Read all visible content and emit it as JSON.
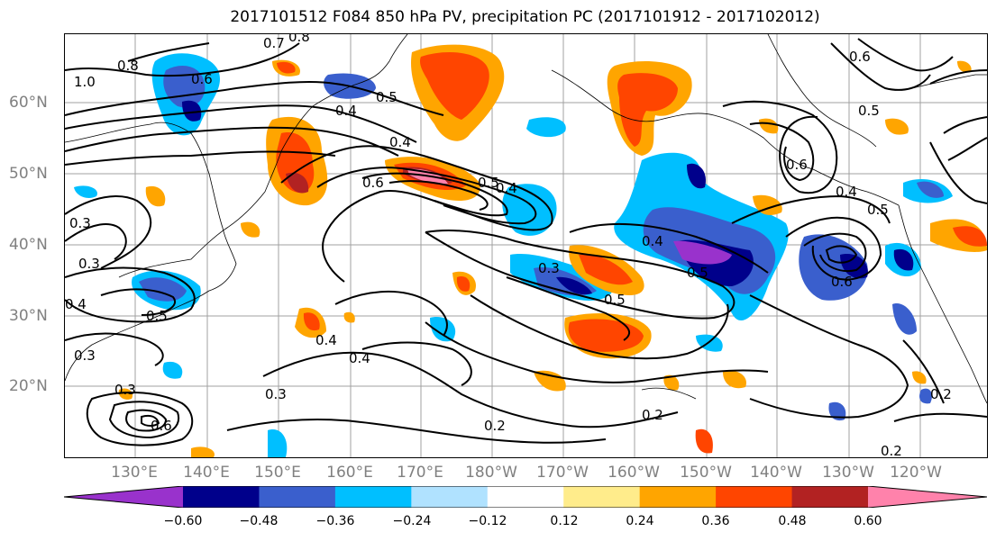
{
  "title": "2017101512 F084 850 hPa PV, precipitation PC (2017101912 - 2017102012)",
  "lat_labels": [
    "60°N",
    "50°N",
    "40°N",
    "30°N",
    "20°N"
  ],
  "lon_labels": [
    "130°E",
    "140°E",
    "150°E",
    "160°E",
    "170°E",
    "180°W",
    "170°W",
    "160°W",
    "150°W",
    "140°W",
    "130°W",
    "120°W"
  ],
  "contour_labels": [
    "0.8",
    "1.0",
    "0.7",
    "0.8",
    "0.6",
    "0.5",
    "0.4",
    "0.4",
    "0.6",
    "0.4",
    "0.5",
    "0.6",
    "0.5",
    "0.6",
    "0.4",
    "0.5",
    "0.6",
    "0.5",
    "0.4",
    "0.3",
    "0.3",
    "0.5",
    "0.3",
    "0.5",
    "0.4",
    "0.3",
    "0.4",
    "0.3",
    "0.2",
    "0.2",
    "0.2",
    "0.2",
    "0.4",
    "0.3",
    "0.6"
  ],
  "colorbar": {
    "colors": [
      "#9932cc",
      "#00008b",
      "#3a5fcd",
      "#00bfff",
      "#b0e2ff",
      "#ffffff",
      "#ffec8b",
      "#ffa500",
      "#ff4500",
      "#b22222",
      "#ff82ab"
    ],
    "tick_labels": [
      "−0.60",
      "−0.48",
      "−0.36",
      "−0.24",
      "−0.12",
      "0.12",
      "0.24",
      "0.36",
      "0.48",
      "0.60"
    ]
  }
}
